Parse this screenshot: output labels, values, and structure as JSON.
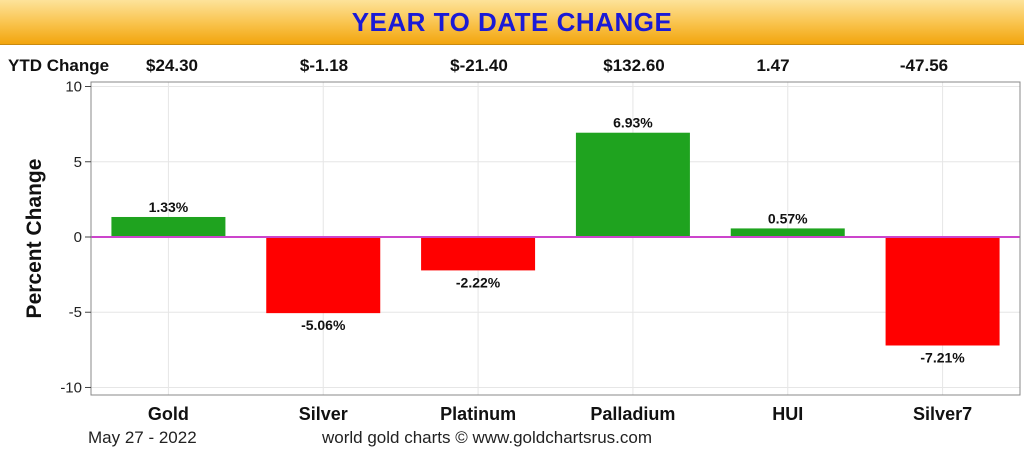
{
  "title": "YEAR TO DATE CHANGE",
  "ytd": {
    "label": "YTD Change",
    "values": [
      "$24.30",
      "$-1.18",
      "$-21.40",
      "$132.60",
      "1.47",
      "-47.56"
    ]
  },
  "footer": {
    "date": "May 27 - 2022",
    "credit": "world gold charts © www.goldchartsrus.com"
  },
  "colors": {
    "positive": "#1fa31f",
    "negative": "#ff0000",
    "zero_line": "#cc44cc"
  },
  "chart_data": {
    "type": "bar",
    "categories": [
      "Gold",
      "Silver",
      "Platinum",
      "Palladium",
      "HUI",
      "Silver7"
    ],
    "values": [
      1.33,
      -5.06,
      -2.22,
      6.93,
      0.57,
      -7.21
    ],
    "data_labels": [
      "1.33%",
      "-5.06%",
      "-2.22%",
      "6.93%",
      "0.57%",
      "-7.21%"
    ],
    "ylabel": "Percent Change",
    "ylim": [
      -10.5,
      10.3
    ],
    "yticks": [
      10,
      5,
      0,
      -5,
      -10
    ],
    "grid": true
  }
}
